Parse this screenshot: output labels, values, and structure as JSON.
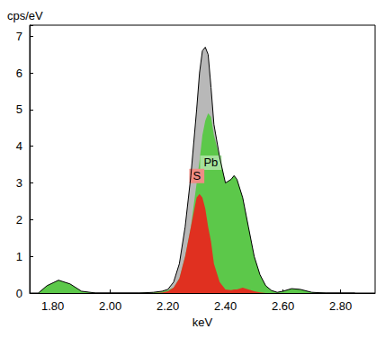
{
  "chart_data": {
    "type": "line",
    "xlabel": "keV",
    "ylabel": "cps/eV",
    "x": [
      1.75,
      1.78,
      1.82,
      1.86,
      1.9,
      1.95,
      2.0,
      2.1,
      2.15,
      2.18,
      2.2,
      2.22,
      2.24,
      2.26,
      2.28,
      2.3,
      2.31,
      2.32,
      2.33,
      2.34,
      2.35,
      2.36,
      2.38,
      2.4,
      2.42,
      2.43,
      2.44,
      2.46,
      2.48,
      2.5,
      2.52,
      2.54,
      2.56,
      2.58,
      2.6,
      2.63,
      2.66,
      2.7,
      2.75,
      2.8,
      2.85
    ],
    "xlim": [
      1.72,
      2.92
    ],
    "xticks": [
      {
        "value": 1.8,
        "label": "1.80"
      },
      {
        "value": 2.0,
        "label": "2.00"
      },
      {
        "value": 2.2,
        "label": "2.20"
      },
      {
        "value": 2.4,
        "label": "2.40"
      },
      {
        "value": 2.6,
        "label": "2.60"
      },
      {
        "value": 2.8,
        "label": "2.80"
      }
    ],
    "ylim": [
      0,
      7.3
    ],
    "yticks": [
      0,
      1,
      2,
      3,
      4,
      5,
      6,
      7
    ],
    "grid": false,
    "series": [
      {
        "type": "area",
        "color": "#b8b8b8",
        "line_style": "solid",
        "values": [
          0,
          0.2,
          0.35,
          0.25,
          0.05,
          0,
          0,
          0,
          0.02,
          0.05,
          0.1,
          0.3,
          0.8,
          1.8,
          3.2,
          5.0,
          6.0,
          6.6,
          6.7,
          6.5,
          5.6,
          4.6,
          3.7,
          3.0,
          3.1,
          3.2,
          3.1,
          2.6,
          1.8,
          1.0,
          0.5,
          0.2,
          0.07,
          0.02,
          0.05,
          0.12,
          0.1,
          0.02,
          0,
          0,
          0
        ]
      },
      {
        "name": "Pb",
        "type": "area",
        "color": "#5cc84a",
        "values": [
          0,
          0.2,
          0.35,
          0.25,
          0.05,
          0,
          0,
          0,
          0.02,
          0.04,
          0.08,
          0.15,
          0.4,
          1.0,
          1.8,
          3.0,
          3.6,
          4.3,
          4.7,
          4.9,
          4.8,
          4.3,
          3.7,
          3.0,
          3.1,
          3.2,
          3.1,
          2.6,
          1.8,
          1.0,
          0.5,
          0.2,
          0.07,
          0.02,
          0.05,
          0.12,
          0.1,
          0.02,
          0,
          0,
          0
        ]
      },
      {
        "name": "S",
        "type": "area",
        "color": "#e03020",
        "values": [
          0,
          0,
          0,
          0,
          0,
          0,
          0,
          0,
          0,
          0.01,
          0.05,
          0.15,
          0.4,
          1.0,
          1.8,
          2.6,
          2.7,
          2.6,
          2.3,
          1.8,
          1.4,
          0.8,
          0.3,
          0.1,
          0.08,
          0.1,
          0.1,
          0.15,
          0.1,
          0.05,
          0.02,
          0,
          0,
          0,
          0,
          0,
          0,
          0,
          0,
          0,
          0
        ]
      }
    ]
  }
}
